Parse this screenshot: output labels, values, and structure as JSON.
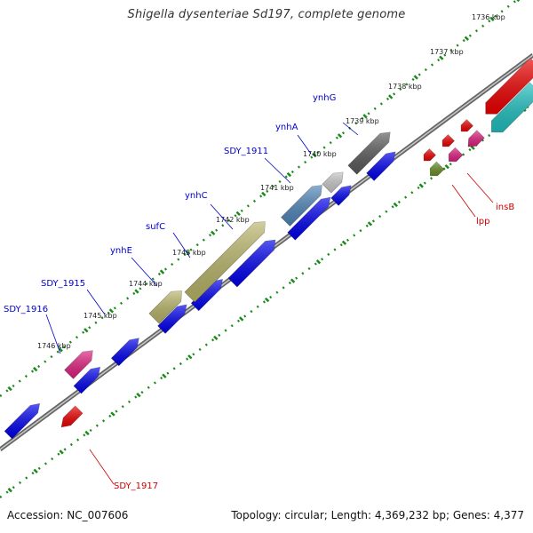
{
  "header": {
    "title": "Shigella dysenteriae Sd197, complete genome"
  },
  "footer": {
    "accession": "Accession: NC_007606",
    "summary": "Topology: circular; Length: 4,369,232 bp; Genes: 4,377"
  },
  "colors": {
    "backbone": "#8a8a8a",
    "ruler": "#1a8a1a",
    "cds_plus": "#0000ee",
    "cds_minus": "#ee0000",
    "label_plus": "#0000cc",
    "label_minus": "#cc0000"
  },
  "ticks": [
    "1736 kbp",
    "1737 kbp",
    "1738 kbp",
    "1739 kbp",
    "1740 kbp",
    "1741 kbp",
    "1742 kbp",
    "1743 kbp",
    "1744 kbp",
    "1745 kbp",
    "1746 kbp"
  ],
  "gene_labels": {
    "top": [
      "ynhG",
      "ynhA",
      "SDY_1911",
      "ynhC",
      "sufC",
      "ynhE",
      "SDY_1915",
      "SDY_1916"
    ],
    "bottom": [
      "insB",
      "lpp",
      "SDY_1917"
    ]
  }
}
